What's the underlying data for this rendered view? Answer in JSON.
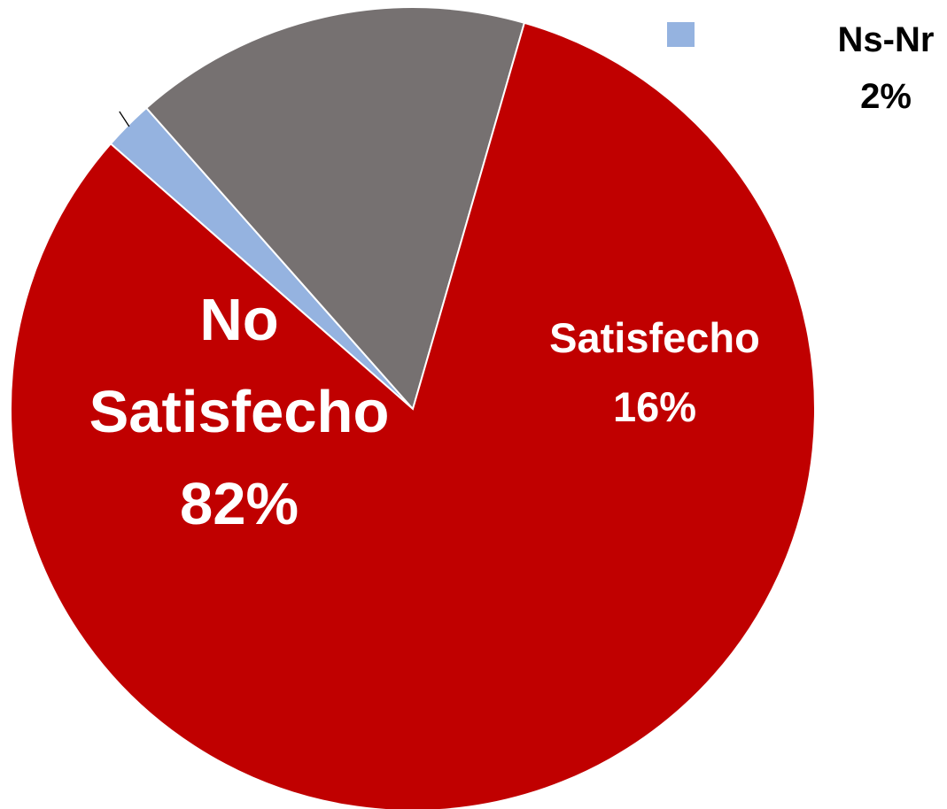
{
  "chart_data": {
    "type": "pie",
    "slices": [
      {
        "name": "Ns-Nr",
        "value": 2,
        "value_label": "2%",
        "color": "#95b3e0"
      },
      {
        "name": "Satisfecho",
        "value": 16,
        "value_label": "16%",
        "color": "#767171"
      },
      {
        "name": "No Satisfecho",
        "value": 82,
        "value_label": "82%",
        "color": "#c00000"
      }
    ],
    "legend": {
      "placement": "top-right",
      "entries": [
        "Ns-Nr"
      ]
    }
  }
}
